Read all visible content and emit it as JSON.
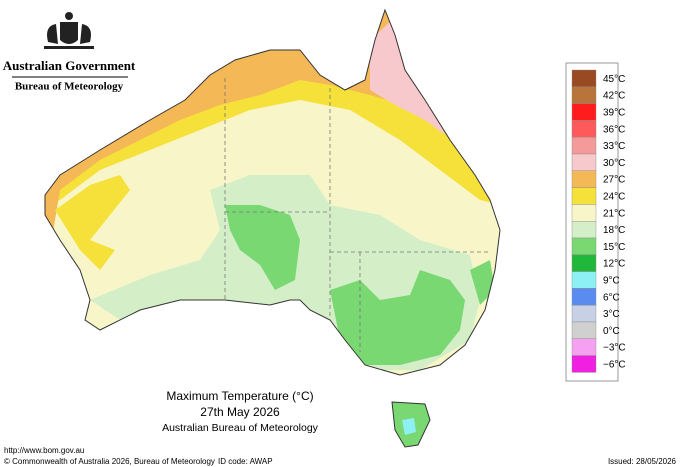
{
  "header": {
    "government": "Australian Government",
    "agency": "Bureau of Meteorology"
  },
  "legend": {
    "items": [
      {
        "label": "45°C",
        "color": "#9a4a22"
      },
      {
        "label": "42°C",
        "color": "#b8743a"
      },
      {
        "label": "39°C",
        "color": "#ff1c1c"
      },
      {
        "label": "36°C",
        "color": "#ff5a5a"
      },
      {
        "label": "33°C",
        "color": "#f59a9a"
      },
      {
        "label": "30°C",
        "color": "#f7c8cc"
      },
      {
        "label": "27°C",
        "color": "#f5b856"
      },
      {
        "label": "24°C",
        "color": "#f5e13a"
      },
      {
        "label": "21°C",
        "color": "#f8f6c8"
      },
      {
        "label": "18°C",
        "color": "#d4efc8"
      },
      {
        "label": "15°C",
        "color": "#7ad873"
      },
      {
        "label": "12°C",
        "color": "#1fb83b"
      },
      {
        "label": "9°C",
        "color": "#8cf0f5"
      },
      {
        "label": "6°C",
        "color": "#5a8cf0"
      },
      {
        "label": "3°C",
        "color": "#c8d0e6"
      },
      {
        "label": "0°C",
        "color": "#d0d0d0"
      },
      {
        "label": "−3°C",
        "color": "#f5a0f0"
      },
      {
        "label": "−6°C",
        "color": "#f020e0"
      }
    ]
  },
  "caption": {
    "title": "Maximum Temperature (°C)",
    "date": "27th May 2026",
    "source": "Australian Bureau of Meteorology"
  },
  "footer": {
    "url": "http://www.bom.gov.au",
    "copyright": "© Commonwealth of Australia 2026, Bureau of Meteorology",
    "id_code": "ID code: AWAP",
    "issued": "Issued: 28/05/2026"
  }
}
